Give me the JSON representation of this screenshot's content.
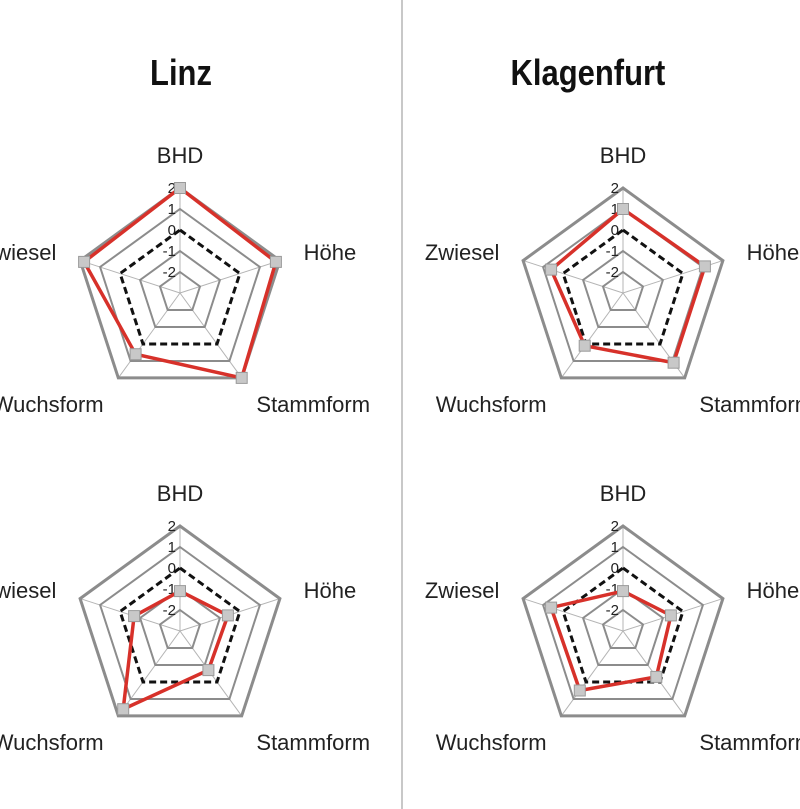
{
  "titles": {
    "left": "Linz",
    "right": "Klagenfurt"
  },
  "chart_data": [
    {
      "type": "radar",
      "position": "top-left",
      "axes": [
        "BHD",
        "Höhe",
        "Stammform",
        "Wuchsform",
        "Zwiesel"
      ],
      "rlim": [
        -3,
        2
      ],
      "ticks": [
        "-2",
        "-1",
        "0",
        "1",
        "2"
      ],
      "series": [
        {
          "values": [
            2.0,
            1.8,
            2.0,
            0.6,
            1.8
          ],
          "color": "#d7312a",
          "style": "solid"
        },
        {
          "values": [
            0,
            0,
            0,
            0,
            0
          ],
          "color": "#111111",
          "style": "dashed"
        }
      ]
    },
    {
      "type": "radar",
      "position": "top-right",
      "axes": [
        "BHD",
        "Höhe",
        "Stammform",
        "Wuchsform",
        "Zwiesel"
      ],
      "rlim": [
        -3,
        2
      ],
      "ticks": [
        "-2",
        "-1",
        "0",
        "1",
        "2"
      ],
      "series": [
        {
          "values": [
            1.0,
            1.1,
            1.1,
            0.1,
            0.6
          ],
          "color": "#d7312a",
          "style": "solid"
        },
        {
          "values": [
            0,
            0,
            0,
            0,
            0
          ],
          "color": "#111111",
          "style": "dashed"
        }
      ]
    },
    {
      "type": "radar",
      "position": "bottom-left",
      "axes": [
        "BHD",
        "Höhe",
        "Stammform",
        "Wuchsform",
        "Zwiesel"
      ],
      "rlim": [
        -3,
        2
      ],
      "ticks": [
        "-2",
        "-1",
        "0",
        "1",
        "2"
      ],
      "series": [
        {
          "values": [
            -1.1,
            -0.6,
            -0.7,
            1.6,
            -0.7
          ],
          "color": "#d7312a",
          "style": "solid"
        },
        {
          "values": [
            0,
            0,
            0,
            0,
            0
          ],
          "color": "#111111",
          "style": "dashed"
        }
      ]
    },
    {
      "type": "radar",
      "position": "bottom-right",
      "axes": [
        "BHD",
        "Höhe",
        "Stammform",
        "Wuchsform",
        "Zwiesel"
      ],
      "rlim": [
        -3,
        2
      ],
      "ticks": [
        "-2",
        "-1",
        "0",
        "1",
        "2"
      ],
      "series": [
        {
          "values": [
            -1.1,
            -0.6,
            -0.3,
            0.5,
            0.6
          ],
          "color": "#d7312a",
          "style": "solid"
        },
        {
          "values": [
            0,
            0,
            0,
            0,
            0
          ],
          "color": "#111111",
          "style": "dashed"
        }
      ]
    }
  ],
  "colors": {
    "grid": "#8c8c8c",
    "spoke": "#b4b4b4",
    "marker_fill": "#c8c8c8",
    "marker_stroke": "#9a9a9a"
  }
}
